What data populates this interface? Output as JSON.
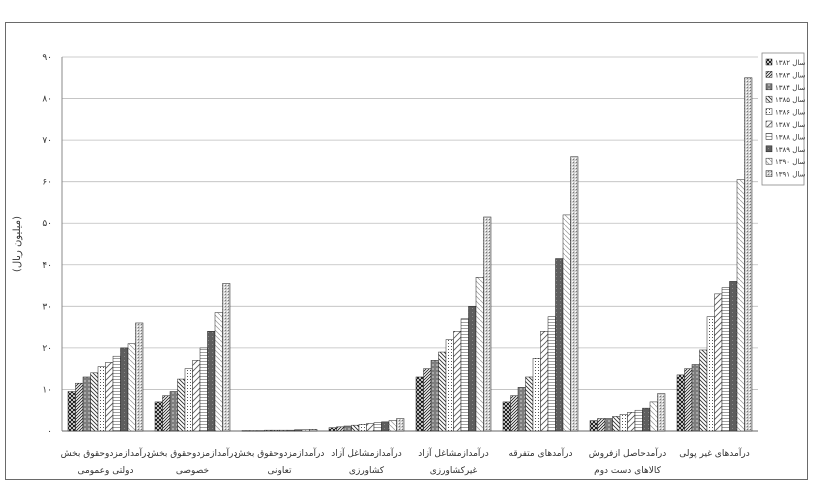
{
  "chart_data": {
    "type": "bar",
    "ylabel": "(میلیون ریال)",
    "ylim": [
      0,
      90
    ],
    "yticks": [
      {
        "v": 0,
        "label": "۰"
      },
      {
        "v": 10,
        "label": "۱۰"
      },
      {
        "v": 20,
        "label": "۲۰"
      },
      {
        "v": 30,
        "label": "۳۰"
      },
      {
        "v": 40,
        "label": "۴۰"
      },
      {
        "v": 50,
        "label": "۵۰"
      },
      {
        "v": 60,
        "label": "۶۰"
      },
      {
        "v": 70,
        "label": "۷۰"
      },
      {
        "v": 80,
        "label": "۸۰"
      },
      {
        "v": 90,
        "label": "۹۰"
      }
    ],
    "grid": true,
    "legend_position": "right",
    "categories": [
      [
        "درآمدازمزدوحقوق بخش",
        "دولتی وعمومی"
      ],
      [
        "درآمدازمزدوحقوق بخش",
        "خصوصی"
      ],
      [
        "درآمدازمزدوحقوق بخش",
        "تعاونی"
      ],
      [
        "درآمدازمشاغل آزاد",
        "کشاورزی"
      ],
      [
        "درآمدازمشاغل آزاد",
        "غیرکشاورزی"
      ],
      [
        "درآمدهای متفرقه"
      ],
      [
        "درآمدحاصل ازفروش",
        "کالاهای دست دوم"
      ],
      [
        "درآمدهای غیر پولی"
      ]
    ],
    "series": [
      {
        "name": "سال ۱۳۸۲",
        "values": [
          9.5,
          7.0,
          0.1,
          0.8,
          13.0,
          7.0,
          2.5,
          13.5
        ]
      },
      {
        "name": "سال ۱۳۸۳",
        "values": [
          11.5,
          8.5,
          0.1,
          1.0,
          15.0,
          8.5,
          3.0,
          15.0
        ]
      },
      {
        "name": "سال ۱۳۸۴",
        "values": [
          13.0,
          9.5,
          0.1,
          1.2,
          17.0,
          10.5,
          3.0,
          16.0
        ]
      },
      {
        "name": "سال ۱۳۸۵",
        "values": [
          14.0,
          12.5,
          0.2,
          1.4,
          19.0,
          13.0,
          3.5,
          19.5
        ]
      },
      {
        "name": "سال ۱۳۸۶",
        "values": [
          15.5,
          15.0,
          0.2,
          1.6,
          22.0,
          17.5,
          4.0,
          27.5
        ]
      },
      {
        "name": "سال ۱۳۸۷",
        "values": [
          16.5,
          17.0,
          0.2,
          1.8,
          24.0,
          24.0,
          4.5,
          33.0
        ]
      },
      {
        "name": "سال ۱۳۸۸",
        "values": [
          18.0,
          20.0,
          0.2,
          2.0,
          27.0,
          27.5,
          5.0,
          34.5
        ]
      },
      {
        "name": "سال ۱۳۸۹",
        "values": [
          20.0,
          24.0,
          0.3,
          2.2,
          30.0,
          41.5,
          5.5,
          36.0
        ]
      },
      {
        "name": "سال ۱۳۹۰",
        "values": [
          21.0,
          28.5,
          0.3,
          2.5,
          37.0,
          52.0,
          7.0,
          60.5
        ]
      },
      {
        "name": "سال ۱۳۹۱",
        "values": [
          26.0,
          35.5,
          0.4,
          3.0,
          51.5,
          66.0,
          9.0,
          85.0
        ]
      }
    ]
  }
}
